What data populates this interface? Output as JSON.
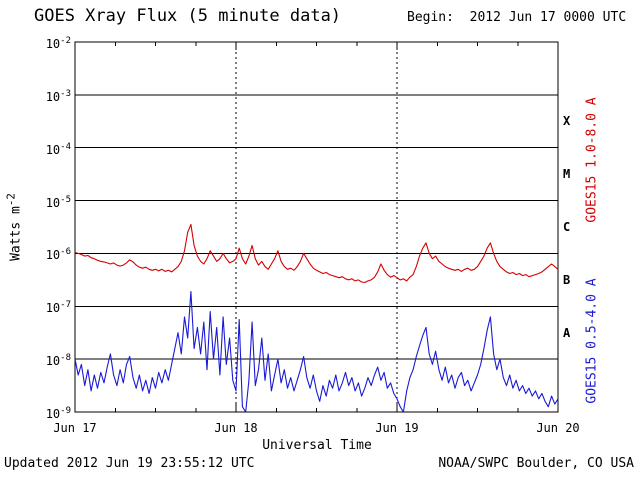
{
  "header": {
    "title": "GOES Xray Flux (5 minute data)",
    "begin": "Begin:  2012 Jun 17 0000 UTC"
  },
  "footer": {
    "updated": "Updated 2012 Jun 19 23:55:12 UTC",
    "source": "NOAA/SWPC Boulder, CO USA"
  },
  "axes": {
    "y_label_base": "Watts m",
    "y_label_exponent": "-2",
    "x_label": "Universal Time"
  },
  "chart_data": {
    "type": "line",
    "title": "GOES Xray Flux (5 minute data)",
    "xlabel": "Universal Time",
    "ylabel": "Watts m^-2",
    "y_scale": "log",
    "y_tick_base": "10",
    "y_tick_exponents": [
      -2,
      -3,
      -4,
      -5,
      -6,
      -7,
      -8,
      -9
    ],
    "x_tick_labels": [
      "Jun 17",
      "Jun 18",
      "Jun 19",
      "Jun 20"
    ],
    "x_range_days": [
      0,
      3
    ],
    "flare_classes": [
      {
        "label": "X",
        "exponent_mid": -3.5
      },
      {
        "label": "M",
        "exponent_mid": -4.5
      },
      {
        "label": "C",
        "exponent_mid": -5.5
      },
      {
        "label": "B",
        "exponent_mid": -6.5
      },
      {
        "label": "A",
        "exponent_mid": -7.5
      }
    ],
    "gridlines": {
      "horizontal_exponents": [
        -3,
        -4,
        -5,
        -6,
        -7,
        -8
      ],
      "vertical_days": [
        1,
        2
      ]
    },
    "series": [
      {
        "name": "GOES15 1.0-8.0 A",
        "color": "#d40000",
        "x_start_days": 0,
        "x_step_days": 0.02,
        "log10_flux": [
          -5.98,
          -6.0,
          -6.02,
          -6.05,
          -6.04,
          -6.08,
          -6.1,
          -6.13,
          -6.15,
          -6.16,
          -6.18,
          -6.2,
          -6.18,
          -6.22,
          -6.24,
          -6.22,
          -6.18,
          -6.12,
          -6.16,
          -6.22,
          -6.26,
          -6.28,
          -6.26,
          -6.3,
          -6.32,
          -6.3,
          -6.33,
          -6.3,
          -6.34,
          -6.32,
          -6.35,
          -6.3,
          -6.25,
          -6.15,
          -5.95,
          -5.6,
          -5.45,
          -5.85,
          -6.05,
          -6.15,
          -6.2,
          -6.1,
          -5.95,
          -6.05,
          -6.15,
          -6.1,
          -6.0,
          -6.1,
          -6.18,
          -6.15,
          -6.1,
          -5.9,
          -6.1,
          -6.2,
          -6.05,
          -5.85,
          -6.1,
          -6.22,
          -6.15,
          -6.25,
          -6.3,
          -6.2,
          -6.1,
          -5.95,
          -6.15,
          -6.25,
          -6.3,
          -6.28,
          -6.32,
          -6.25,
          -6.15,
          -6.0,
          -6.1,
          -6.2,
          -6.28,
          -6.32,
          -6.35,
          -6.38,
          -6.36,
          -6.4,
          -6.42,
          -6.44,
          -6.46,
          -6.44,
          -6.48,
          -6.5,
          -6.48,
          -6.52,
          -6.5,
          -6.54,
          -6.55,
          -6.52,
          -6.5,
          -6.45,
          -6.35,
          -6.2,
          -6.32,
          -6.4,
          -6.45,
          -6.42,
          -6.46,
          -6.5,
          -6.48,
          -6.52,
          -6.45,
          -6.4,
          -6.25,
          -6.05,
          -5.9,
          -5.8,
          -6.0,
          -6.1,
          -6.05,
          -6.15,
          -6.2,
          -6.25,
          -6.28,
          -6.3,
          -6.32,
          -6.3,
          -6.34,
          -6.3,
          -6.28,
          -6.32,
          -6.3,
          -6.25,
          -6.15,
          -6.05,
          -5.9,
          -5.8,
          -6.0,
          -6.15,
          -6.25,
          -6.3,
          -6.35,
          -6.38,
          -6.36,
          -6.4,
          -6.38,
          -6.42,
          -6.4,
          -6.44,
          -6.42,
          -6.4,
          -6.38,
          -6.35,
          -6.3,
          -6.25,
          -6.2,
          -6.25,
          -6.3
        ]
      },
      {
        "name": "GOES15 0.5-4.0 A",
        "color": "#1a1ad4",
        "x_start_days": 0,
        "x_step_days": 0.02,
        "log10_flux": [
          -8.0,
          -8.3,
          -8.1,
          -8.5,
          -8.2,
          -8.6,
          -8.3,
          -8.55,
          -8.25,
          -8.45,
          -8.15,
          -7.9,
          -8.3,
          -8.5,
          -8.2,
          -8.45,
          -8.1,
          -7.95,
          -8.35,
          -8.55,
          -8.3,
          -8.6,
          -8.4,
          -8.65,
          -8.35,
          -8.55,
          -8.25,
          -8.45,
          -8.2,
          -8.4,
          -8.1,
          -7.8,
          -7.5,
          -7.9,
          -7.2,
          -7.6,
          -6.72,
          -7.8,
          -7.4,
          -7.9,
          -7.3,
          -8.2,
          -7.1,
          -8.0,
          -7.4,
          -8.3,
          -7.2,
          -8.1,
          -7.6,
          -8.4,
          -8.6,
          -7.25,
          -8.9,
          -9.0,
          -8.4,
          -7.3,
          -8.5,
          -8.2,
          -7.6,
          -8.4,
          -7.9,
          -8.6,
          -8.3,
          -8.0,
          -8.45,
          -8.2,
          -8.55,
          -8.35,
          -8.6,
          -8.4,
          -8.2,
          -7.95,
          -8.35,
          -8.55,
          -8.3,
          -8.6,
          -8.8,
          -8.5,
          -8.7,
          -8.4,
          -8.55,
          -8.3,
          -8.6,
          -8.45,
          -8.25,
          -8.5,
          -8.35,
          -8.6,
          -8.45,
          -8.7,
          -8.55,
          -8.35,
          -8.5,
          -8.3,
          -8.15,
          -8.4,
          -8.25,
          -8.55,
          -8.45,
          -8.65,
          -8.75,
          -8.9,
          -9.0,
          -8.6,
          -8.35,
          -8.2,
          -7.95,
          -7.75,
          -7.55,
          -7.4,
          -7.9,
          -8.1,
          -7.85,
          -8.2,
          -8.4,
          -8.15,
          -8.45,
          -8.3,
          -8.55,
          -8.35,
          -8.25,
          -8.5,
          -8.4,
          -8.6,
          -8.45,
          -8.3,
          -8.1,
          -7.8,
          -7.45,
          -7.2,
          -7.9,
          -8.2,
          -8.0,
          -8.35,
          -8.5,
          -8.3,
          -8.55,
          -8.4,
          -8.6,
          -8.5,
          -8.65,
          -8.55,
          -8.7,
          -8.6,
          -8.75,
          -8.65,
          -8.8,
          -8.9,
          -8.7,
          -8.85,
          -8.75
        ]
      }
    ]
  }
}
